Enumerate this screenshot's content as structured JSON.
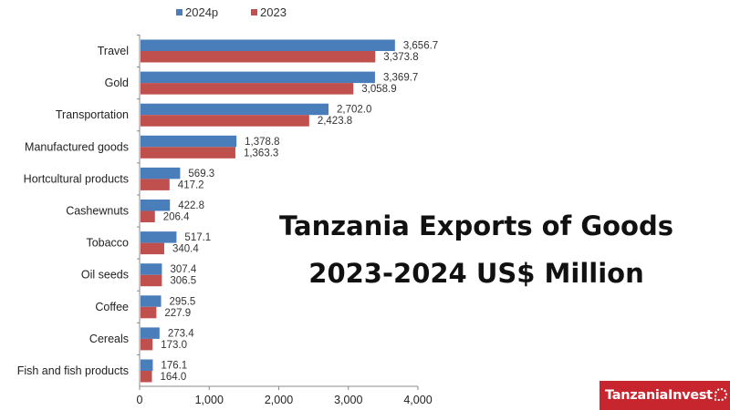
{
  "title_line1": "Tanzania Exports of Goods",
  "title_line2": "2023-2024 US$ Million",
  "logo_text": "TanzaniaInvest",
  "chart_data": {
    "type": "bar",
    "orientation": "horizontal",
    "title": "Tanzania Exports of Goods 2023-2024 US$ Million",
    "xlabel": "",
    "ylabel": "",
    "xlim": [
      0,
      4000
    ],
    "xticks": [
      0,
      1000,
      2000,
      3000,
      4000
    ],
    "xtick_labels": [
      "0",
      "1,000",
      "2,000",
      "3,000",
      "4,000"
    ],
    "grid": false,
    "legend_position": "top",
    "categories": [
      "Travel",
      "Gold",
      "Transportation",
      "Manufactured goods",
      "Hortcultural products",
      "Cashewnuts",
      "Tobacco",
      "Oil seeds",
      "Coffee",
      "Cereals",
      "Fish and fish products"
    ],
    "series": [
      {
        "name": "2024p",
        "color": "#4a7ebb",
        "values": [
          3656.7,
          3369.7,
          2702.0,
          1378.8,
          569.3,
          422.8,
          517.1,
          307.4,
          295.5,
          273.4,
          176.1
        ],
        "labels": [
          "3,656.7",
          "3,369.7",
          "2,702.0",
          "1,378.8",
          "569.3",
          "422.8",
          "517.1",
          "307.4",
          "295.5",
          "273.4",
          "176.1"
        ]
      },
      {
        "name": "2023",
        "color": "#c0504d",
        "values": [
          3373.8,
          3058.9,
          2423.8,
          1363.3,
          417.2,
          206.4,
          340.4,
          306.5,
          227.9,
          173.0,
          164.0
        ],
        "labels": [
          "3,373.8",
          "3,058.9",
          "2,423.8",
          "1,363.3",
          "417.2",
          "206.4",
          "340.4",
          "306.5",
          "227.9",
          "173.0",
          "164.0"
        ]
      }
    ]
  }
}
